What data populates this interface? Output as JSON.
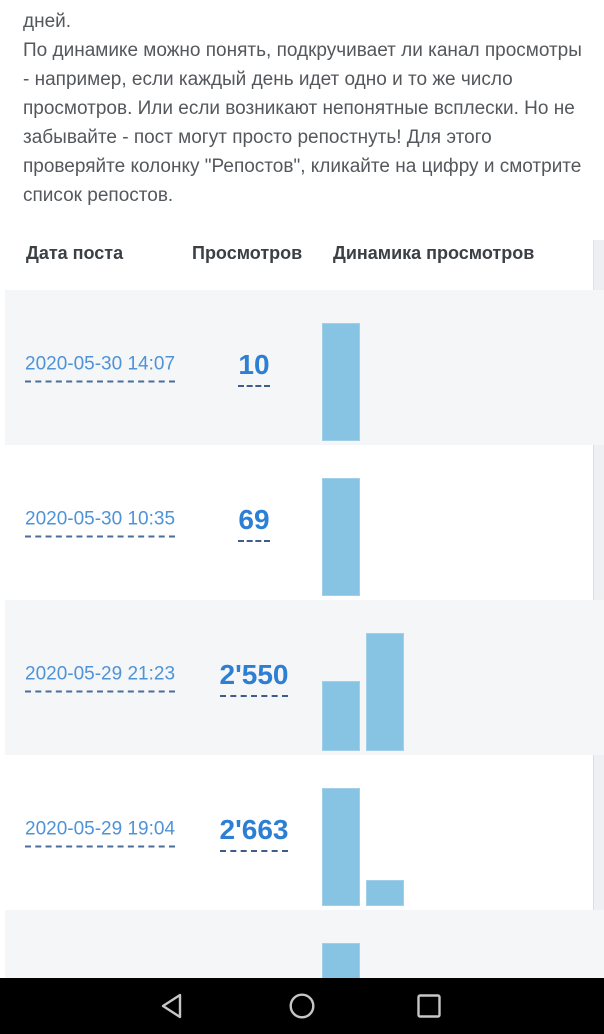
{
  "intro": {
    "lines": [
      "дней.",
      "По динамике можно понять, подкручивает ли канал просмотры",
      "- например, если каждый день идет одно и то же число",
      "просмотров. Или если возникают непонятные всплески. Но не",
      "забывайте - пост могут просто репостнуть! Для этого",
      "проверяйте колонку \"Репостов\", кликайте на цифру и смотрите",
      "список репостов."
    ]
  },
  "table": {
    "columns": [
      "Дата поста",
      "Просмотров",
      "Динамика просмотров"
    ],
    "rows": [
      {
        "date": "2020-05-30 14:07",
        "views": "10",
        "dynamics": [
          1.0
        ],
        "partial": false
      },
      {
        "date": "2020-05-30 10:35",
        "views": "69",
        "dynamics": [
          1.0
        ],
        "partial": false
      },
      {
        "date": "2020-05-29 21:23",
        "views": "2'550",
        "dynamics": [
          0.59,
          1.0
        ],
        "partial": false
      },
      {
        "date": "2020-05-29 19:04",
        "views": "2'663",
        "dynamics": [
          1.0,
          0.22
        ],
        "partial": false
      },
      {
        "date": "",
        "views": "",
        "dynamics": [
          1.0
        ],
        "partial": true
      }
    ]
  },
  "navbar": {
    "buttons": [
      "back",
      "home",
      "recents"
    ]
  },
  "colors": {
    "bar_fill": "#87c3e2",
    "bar_border": "#a2cfe8",
    "date_link": "#4f93d7",
    "views_link": "#2d7fd3",
    "dashed_underline": "#4a6d9b",
    "row_stripe": "#f4f6f8",
    "header_text": "#3b4045",
    "body_text": "#54585c",
    "navbar_bg": "#000000",
    "nav_icon": "#c5c7c6"
  }
}
